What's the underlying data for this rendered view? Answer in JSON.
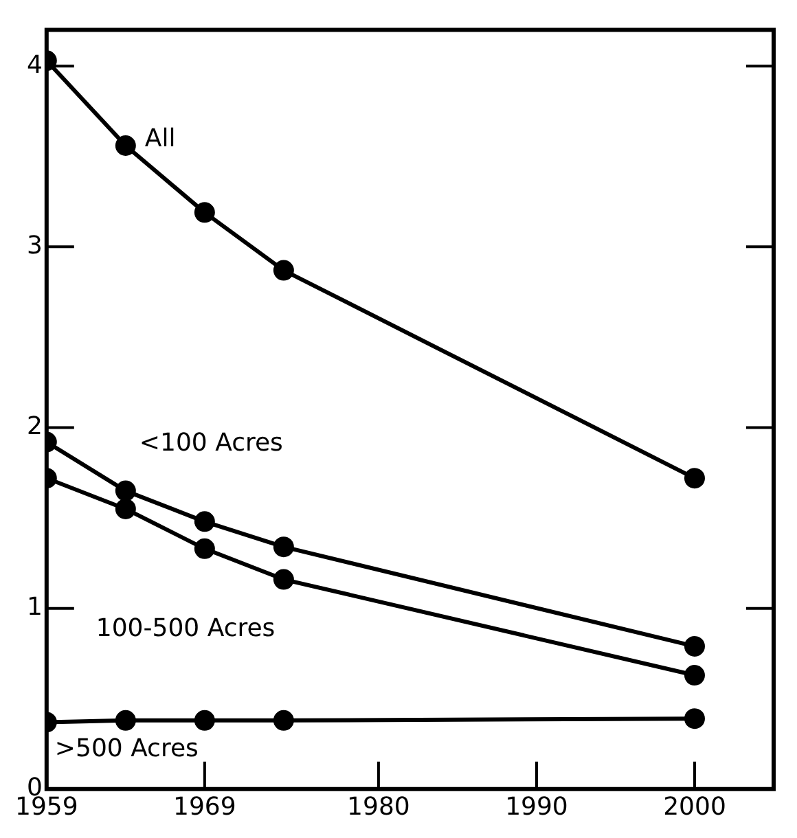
{
  "chart_data": {
    "type": "line",
    "x": [
      1959,
      1964,
      1969,
      1974,
      2000
    ],
    "xlim": [
      1959,
      2005
    ],
    "xticks": [
      1959,
      1969,
      1980,
      1990,
      2000
    ],
    "ylim": [
      0,
      4.2
    ],
    "yticks": [
      0,
      1,
      2,
      3,
      4
    ],
    "grid": false,
    "legend": false,
    "marker": "circle",
    "line_style": "solid",
    "series": [
      {
        "name": "All",
        "color": "#000000",
        "values": [
          4.03,
          3.56,
          3.19,
          2.87,
          1.72
        ]
      },
      {
        "name": "<100 Acres",
        "color": "#000000",
        "values": [
          1.92,
          1.65,
          1.48,
          1.34,
          0.79
        ]
      },
      {
        "name": "100-500 Acres",
        "color": "#000000",
        "values": [
          1.72,
          1.55,
          1.33,
          1.16,
          0.63
        ]
      },
      {
        "name": ">500 Acres",
        "color": "#000000",
        "values": [
          0.37,
          0.38,
          0.38,
          0.38,
          0.39
        ]
      }
    ]
  }
}
